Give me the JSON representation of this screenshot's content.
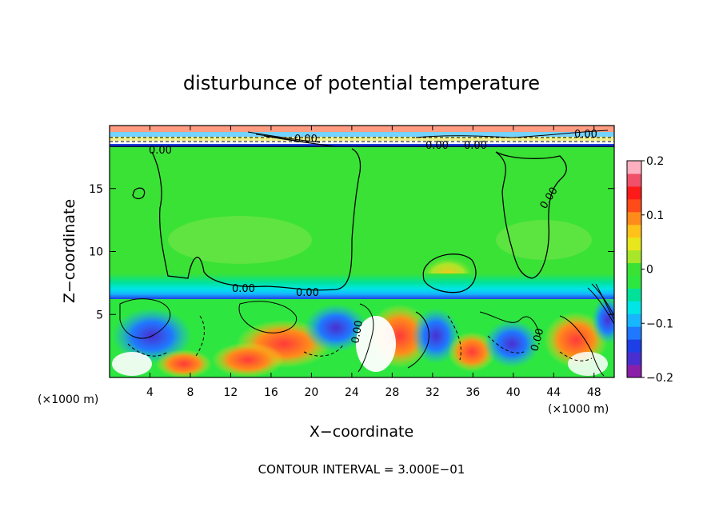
{
  "chart_data": {
    "type": "heatmap",
    "title": "disturbunce of potential temperature",
    "xlabel": "X−coordinate",
    "ylabel": "Z−coordinate",
    "x_unit_left": "(×1000 m)",
    "x_unit_right": "(×1000 m)",
    "xlim": [
      0,
      50
    ],
    "ylim": [
      0,
      20
    ],
    "x_ticks": [
      4,
      8,
      12,
      16,
      20,
      24,
      28,
      32,
      36,
      40,
      44,
      48
    ],
    "y_ticks": [
      5,
      10,
      15
    ],
    "colorbar": {
      "range": [
        -0.2,
        0.2
      ],
      "ticks": [
        {
          "value": 0.2,
          "label": "0.2"
        },
        {
          "value": 0.1,
          "label": "0.1"
        },
        {
          "value": 0,
          "label": "0"
        },
        {
          "value": -0.1,
          "label": "−0.1"
        },
        {
          "value": -0.2,
          "label": "−0.2"
        }
      ],
      "colors": [
        "#8a1fa8",
        "#4a2fd0",
        "#1e3ee6",
        "#1f78ff",
        "#17b6ff",
        "#00e5e5",
        "#00e29a",
        "#2ee640",
        "#3ae236",
        "#a8e62a",
        "#e8e61c",
        "#ffc21a",
        "#ff8c1a",
        "#ff4a1a",
        "#ff1a1a",
        "#f0506a",
        "#ffb0c0"
      ]
    },
    "contour_labels": [
      "0.00",
      "0.00",
      "0.00",
      "0.00",
      "0.00",
      "0.00",
      "0.00",
      "0.00",
      "0.00",
      "0.00"
    ],
    "contour_interval_label": "CONTOUR INTERVAL = 3.000E−01"
  }
}
